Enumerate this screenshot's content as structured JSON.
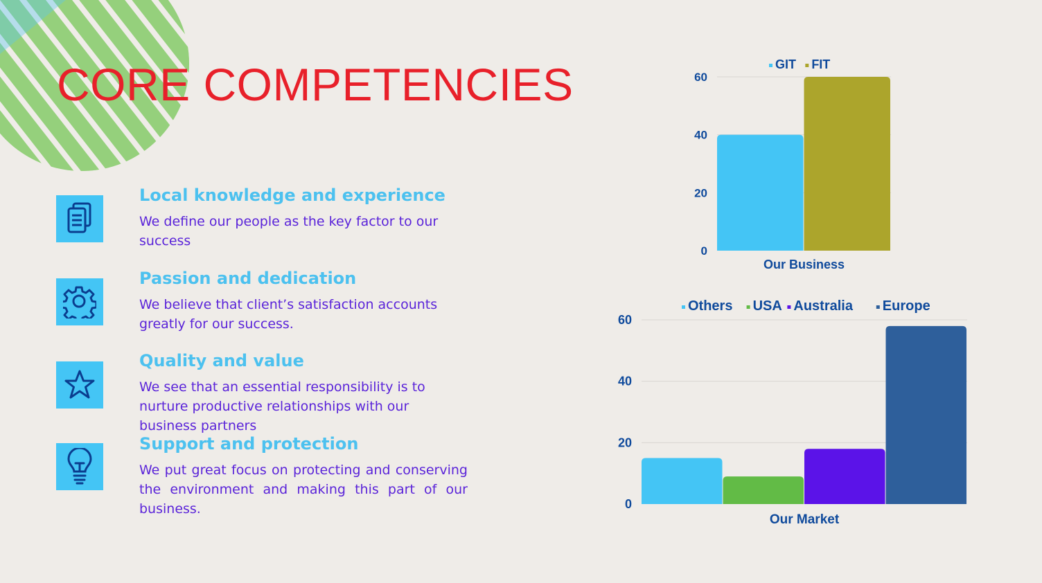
{
  "page": {
    "title": "CORE COMPETENCIES",
    "accent_red": "#e8202a",
    "deco_green": "#95d07c",
    "deco_blue": "#5bc4ef"
  },
  "competencies": [
    {
      "icon": "document-icon",
      "heading": "Local knowledge and experience",
      "text": "We define our people as the key factor to our success"
    },
    {
      "icon": "gear-icon",
      "heading": "Passion and dedication",
      "text": "We believe that client’s satisfaction accounts greatly for our success."
    },
    {
      "icon": "star-icon",
      "heading": "Quality and value",
      "text": "We see that an essential responsibility is to nurture productive relationships with our business partners"
    },
    {
      "icon": "lightbulb-icon",
      "heading": "Support and protection",
      "text": "We put great focus on protecting and conserving the environment and making this part of our business."
    }
  ],
  "chart_data": [
    {
      "type": "bar",
      "title": "",
      "categories": [
        "Our Business"
      ],
      "series": [
        {
          "name": "GIT",
          "values": [
            40
          ],
          "color": "#44c5f5"
        },
        {
          "name": "FIT",
          "values": [
            60
          ],
          "color": "#aca52c"
        }
      ],
      "ylim": [
        0,
        60
      ],
      "yticks": [
        "0",
        "20",
        "40",
        "60"
      ],
      "legend": "top",
      "grid": true
    },
    {
      "type": "bar",
      "title": "",
      "categories": [
        "Our Market"
      ],
      "series": [
        {
          "name": "Others",
          "values": [
            15
          ],
          "color": "#44c5f5"
        },
        {
          "name": "USA",
          "values": [
            9
          ],
          "color": "#62bb46"
        },
        {
          "name": "Australia",
          "values": [
            18
          ],
          "color": "#5b13e8"
        },
        {
          "name": "Europe",
          "values": [
            58
          ],
          "color": "#2e5f9b"
        }
      ],
      "ylim": [
        0,
        60
      ],
      "yticks": [
        "0",
        "20",
        "40",
        "60"
      ],
      "legend": "top",
      "grid": true
    }
  ]
}
